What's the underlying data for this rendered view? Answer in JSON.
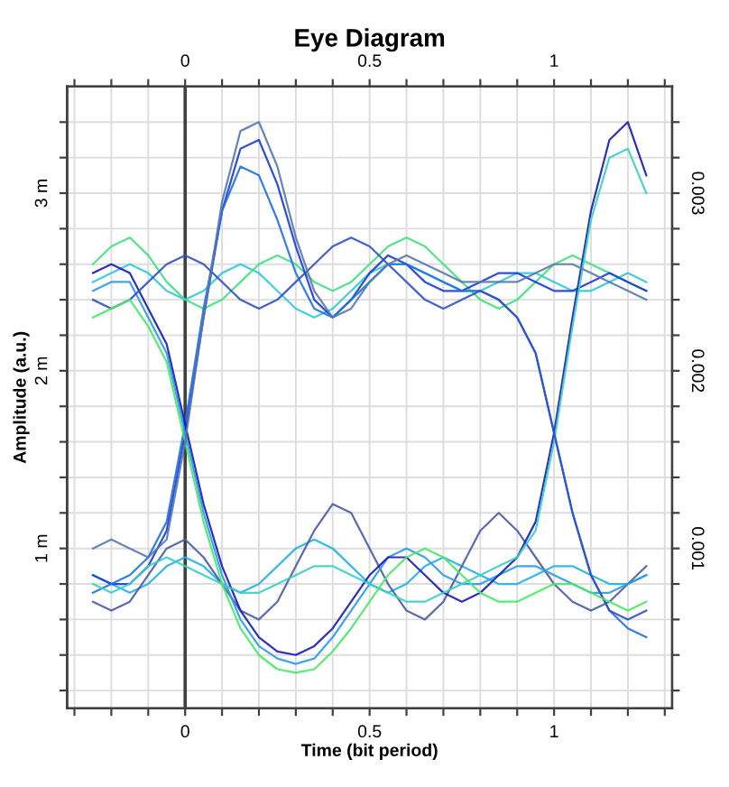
{
  "chart_data": {
    "type": "line",
    "title": "Eye Diagram",
    "xlabel": "Time (bit period)",
    "ylabel": "Amplitude (a.u.)",
    "x": [
      -0.25,
      -0.2,
      -0.15,
      -0.1,
      -0.05,
      0,
      0.05,
      0.1,
      0.15,
      0.2,
      0.25,
      0.3,
      0.35,
      0.4,
      0.45,
      0.5,
      0.55,
      0.6,
      0.65,
      0.7,
      0.75,
      0.8,
      0.85,
      0.9,
      0.95,
      1.0,
      1.05,
      1.1,
      1.15,
      1.2,
      1.25
    ],
    "series": [
      {
        "color": "#30c8d8",
        "values": [
          2.5,
          2.55,
          2.6,
          2.55,
          2.45,
          2.4,
          2.45,
          2.55,
          2.6,
          2.55,
          2.45,
          2.35,
          2.3,
          2.35,
          2.45,
          2.55,
          2.6,
          2.6,
          2.55,
          2.5,
          2.45,
          2.45,
          2.5,
          2.55,
          2.55,
          2.5,
          2.45,
          2.45,
          2.5,
          2.55,
          2.5
        ]
      },
      {
        "color": "#40e080",
        "values": [
          2.6,
          2.7,
          2.75,
          2.65,
          2.5,
          2.4,
          2.35,
          2.4,
          2.5,
          2.6,
          2.65,
          2.6,
          2.5,
          2.45,
          2.5,
          2.6,
          2.7,
          2.75,
          2.7,
          2.6,
          2.5,
          2.4,
          2.35,
          2.4,
          2.5,
          2.6,
          2.65,
          2.6,
          2.55,
          2.5,
          2.45
        ]
      },
      {
        "color": "#20b0e8",
        "values": [
          0.85,
          0.8,
          0.75,
          0.8,
          0.9,
          0.95,
          0.9,
          0.8,
          0.75,
          0.8,
          0.9,
          1.0,
          1.05,
          1.0,
          0.9,
          0.8,
          0.75,
          0.8,
          0.9,
          0.95,
          0.9,
          0.85,
          0.8,
          0.8,
          0.85,
          0.9,
          0.9,
          0.85,
          0.8,
          0.8,
          0.85
        ]
      },
      {
        "color": "#4a5aa8",
        "values": [
          0.7,
          0.65,
          0.7,
          0.85,
          1.0,
          1.05,
          0.95,
          0.8,
          0.65,
          0.6,
          0.7,
          0.9,
          1.1,
          1.25,
          1.2,
          1.0,
          0.8,
          0.65,
          0.6,
          0.7,
          0.9,
          1.1,
          1.2,
          1.1,
          0.95,
          0.8,
          0.7,
          0.65,
          0.7,
          0.8,
          0.9
        ]
      },
      {
        "color": "#1a3ad8",
        "values": [
          0.85,
          0.8,
          0.8,
          0.9,
          1.1,
          1.65,
          2.3,
          2.9,
          3.25,
          3.3,
          3.05,
          2.7,
          2.4,
          2.3,
          2.4,
          2.55,
          2.65,
          2.6,
          2.5,
          2.45,
          2.45,
          2.5,
          2.55,
          2.55,
          2.5,
          2.45,
          2.45,
          2.5,
          2.55,
          2.5,
          2.45
        ]
      },
      {
        "color": "#2070e0",
        "values": [
          0.75,
          0.8,
          0.85,
          0.95,
          1.15,
          1.7,
          2.35,
          2.9,
          3.15,
          3.1,
          2.85,
          2.55,
          2.35,
          2.3,
          2.4,
          2.5,
          2.6,
          2.6,
          2.55,
          2.5,
          2.45,
          2.45,
          2.4,
          2.3,
          2.1,
          1.65,
          1.2,
          0.85,
          0.65,
          0.55,
          0.5
        ]
      },
      {
        "color": "#2a9ae8",
        "values": [
          2.45,
          2.5,
          2.5,
          2.3,
          2.1,
          1.65,
          1.2,
          0.85,
          0.6,
          0.45,
          0.38,
          0.35,
          0.38,
          0.5,
          0.65,
          0.8,
          0.95,
          1.0,
          0.95,
          0.85,
          0.8,
          0.8,
          0.85,
          0.9,
          0.9,
          0.85,
          0.8,
          0.75,
          0.75,
          0.8,
          0.85
        ]
      },
      {
        "color": "#1818b8",
        "values": [
          2.55,
          2.6,
          2.55,
          2.35,
          2.15,
          1.7,
          1.25,
          0.9,
          0.65,
          0.5,
          0.42,
          0.4,
          0.45,
          0.55,
          0.7,
          0.85,
          0.95,
          0.95,
          0.85,
          0.75,
          0.7,
          0.75,
          0.85,
          0.95,
          1.15,
          1.65,
          2.3,
          2.9,
          3.3,
          3.4,
          3.1
        ]
      },
      {
        "color": "#38d0c0",
        "values": [
          0.8,
          0.75,
          0.8,
          0.9,
          0.95,
          0.9,
          0.85,
          0.8,
          0.75,
          0.75,
          0.8,
          0.85,
          0.9,
          0.9,
          0.85,
          0.8,
          0.75,
          0.7,
          0.7,
          0.75,
          0.8,
          0.85,
          0.9,
          0.95,
          1.1,
          1.6,
          2.25,
          2.85,
          3.2,
          3.25,
          3.0
        ]
      },
      {
        "color": "#3050c8",
        "values": [
          2.4,
          2.35,
          2.4,
          2.5,
          2.6,
          2.65,
          2.6,
          2.5,
          2.4,
          2.35,
          2.4,
          2.5,
          2.6,
          2.7,
          2.75,
          2.7,
          2.6,
          2.5,
          2.4,
          2.35,
          2.4,
          2.45,
          2.4,
          2.3,
          2.1,
          1.65,
          1.2,
          0.85,
          0.65,
          0.6,
          0.65
        ]
      },
      {
        "color": "#48e868",
        "values": [
          2.3,
          2.35,
          2.4,
          2.25,
          2.05,
          1.6,
          1.15,
          0.8,
          0.55,
          0.4,
          0.32,
          0.3,
          0.32,
          0.42,
          0.55,
          0.7,
          0.85,
          0.95,
          1.0,
          0.95,
          0.85,
          0.75,
          0.7,
          0.7,
          0.75,
          0.8,
          0.8,
          0.75,
          0.7,
          0.65,
          0.7
        ]
      },
      {
        "color": "#5878b0",
        "values": [
          1.0,
          1.05,
          1.0,
          0.95,
          1.05,
          1.6,
          2.3,
          2.95,
          3.35,
          3.4,
          3.15,
          2.75,
          2.45,
          2.3,
          2.35,
          2.5,
          2.6,
          2.65,
          2.6,
          2.55,
          2.5,
          2.5,
          2.5,
          2.5,
          2.55,
          2.6,
          2.6,
          2.55,
          2.5,
          2.45,
          2.4
        ]
      }
    ],
    "xlim": [
      -0.32,
      1.32
    ],
    "xticks": [
      {
        "value": -0.3,
        "label": null
      },
      {
        "value": -0.2,
        "label": null
      },
      {
        "value": -0.1,
        "label": null
      },
      0,
      {
        "value": 0.1,
        "label": null
      },
      {
        "value": 0.2,
        "label": null
      },
      {
        "value": 0.3,
        "label": null
      },
      {
        "value": 0.4,
        "label": null
      },
      0.5,
      {
        "value": 0.6,
        "label": null
      },
      {
        "value": 0.7,
        "label": null
      },
      {
        "value": 0.8,
        "label": null
      },
      {
        "value": 0.9,
        "label": null
      },
      1,
      {
        "value": 1.1,
        "label": null
      },
      {
        "value": 1.2,
        "label": null
      },
      {
        "value": 1.3,
        "label": null
      }
    ],
    "x2lim": [
      -0.32,
      1.32
    ],
    "x2ticks": [
      {
        "value": -0.3,
        "label": null
      },
      {
        "value": -0.2,
        "label": null
      },
      {
        "value": -0.1,
        "label": null
      },
      0,
      {
        "value": 0.1,
        "label": null
      },
      {
        "value": 0.2,
        "label": null
      },
      {
        "value": 0.3,
        "label": null
      },
      {
        "value": 0.4,
        "label": null
      },
      0.5,
      {
        "value": 0.6,
        "label": null
      },
      {
        "value": 0.7,
        "label": null
      },
      {
        "value": 0.8,
        "label": null
      },
      {
        "value": 0.9,
        "label": null
      },
      1,
      {
        "value": 1.1,
        "label": null
      },
      {
        "value": 1.2,
        "label": null
      },
      {
        "value": 1.3,
        "label": null
      }
    ],
    "ylim": [
      0.1,
      3.6
    ],
    "yticks": [
      {
        "value": 0.2,
        "label": null
      },
      {
        "value": 0.4,
        "label": null
      },
      {
        "value": 0.6,
        "label": null
      },
      {
        "value": 0.8,
        "label": null
      },
      {
        "value": 1,
        "label": "1 m"
      },
      {
        "value": 1.2,
        "label": null
      },
      {
        "value": 1.4,
        "label": null
      },
      {
        "value": 1.6,
        "label": null
      },
      {
        "value": 1.8,
        "label": null
      },
      {
        "value": 2,
        "label": "2 m"
      },
      {
        "value": 2.2,
        "label": null
      },
      {
        "value": 2.4,
        "label": null
      },
      {
        "value": 2.6,
        "label": null
      },
      {
        "value": 2.8,
        "label": null
      },
      {
        "value": 3,
        "label": "3 m"
      },
      {
        "value": 3.2,
        "label": null
      },
      {
        "value": 3.4,
        "label": null
      }
    ],
    "y2lim": [
      0.0001,
      0.0036
    ],
    "y2ticks": [
      {
        "value": 0.0002,
        "label": null
      },
      {
        "value": 0.0004,
        "label": null
      },
      {
        "value": 0.0006,
        "label": null
      },
      {
        "value": 0.0008,
        "label": null
      },
      0.001,
      {
        "value": 0.0012,
        "label": null
      },
      {
        "value": 0.0014,
        "label": null
      },
      {
        "value": 0.0016,
        "label": null
      },
      {
        "value": 0.0018,
        "label": null
      },
      0.002,
      {
        "value": 0.0022,
        "label": null
      },
      {
        "value": 0.0024,
        "label": null
      },
      {
        "value": 0.0026,
        "label": null
      },
      {
        "value": 0.0028,
        "label": null
      },
      0.003,
      {
        "value": 0.0032,
        "label": null
      },
      {
        "value": 0.0034,
        "label": null
      }
    ],
    "ref_lines": [
      {
        "axis": "x",
        "value": 0,
        "color": "#404040"
      }
    ],
    "grid": true,
    "marker": "none",
    "line_style": "solid"
  }
}
